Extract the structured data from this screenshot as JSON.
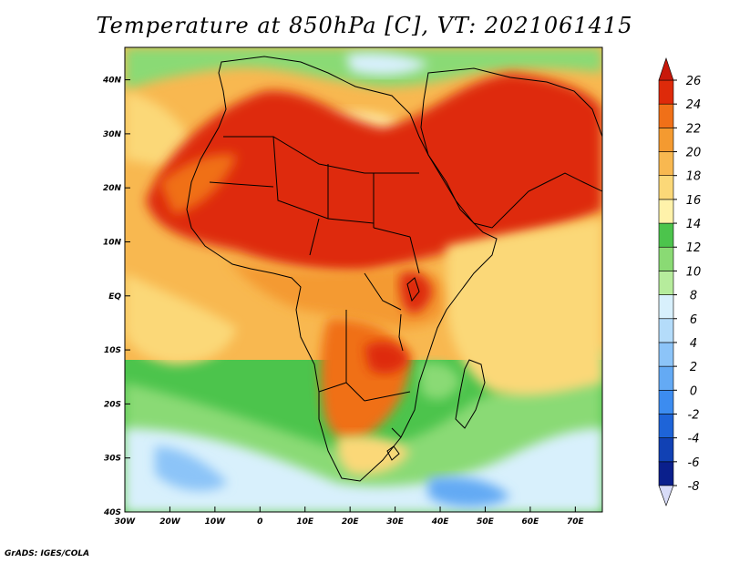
{
  "title": "Temperature at 850hPa [C], VT: 2021061415",
  "credit": "GrADS: IGES/COLA",
  "map": {
    "projection": "lat-lon",
    "lon_range": [
      -30,
      76
    ],
    "lat_range": [
      -40,
      46
    ],
    "lon_ticks": [
      {
        "value": -30,
        "label": "30W"
      },
      {
        "value": -20,
        "label": "20W"
      },
      {
        "value": -10,
        "label": "10W"
      },
      {
        "value": 0,
        "label": "0"
      },
      {
        "value": 10,
        "label": "10E"
      },
      {
        "value": 20,
        "label": "20E"
      },
      {
        "value": 30,
        "label": "30E"
      },
      {
        "value": 40,
        "label": "40E"
      },
      {
        "value": 50,
        "label": "50E"
      },
      {
        "value": 60,
        "label": "60E"
      },
      {
        "value": 70,
        "label": "70E"
      }
    ],
    "lat_ticks": [
      {
        "value": 40,
        "label": "40N"
      },
      {
        "value": 30,
        "label": "30N"
      },
      {
        "value": 20,
        "label": "20N"
      },
      {
        "value": 10,
        "label": "10N"
      },
      {
        "value": 0,
        "label": "EQ"
      },
      {
        "value": -10,
        "label": "10S"
      },
      {
        "value": -20,
        "label": "20S"
      },
      {
        "value": -30,
        "label": "30S"
      },
      {
        "value": -40,
        "label": "40S"
      }
    ]
  },
  "colorbar": {
    "levels": [
      "-8",
      "-6",
      "-4",
      "-2",
      "0",
      "2",
      "4",
      "6",
      "8",
      "10",
      "12",
      "14",
      "16",
      "18",
      "20",
      "22",
      "24",
      "26"
    ],
    "colors": [
      "#0a1f8c",
      "#1141b4",
      "#1e64d8",
      "#3c8cf0",
      "#64aaf4",
      "#8cc4f8",
      "#b4dcfa",
      "#d8f0fc",
      "#b6ec9c",
      "#8ada74",
      "#4cc44c",
      "#fff2aa",
      "#fbd878",
      "#f8b850",
      "#f49a30",
      "#f07018",
      "#de2a0a",
      "#c8180a"
    ],
    "below_color": "#d8dcf8",
    "above_color": "#c8180a"
  }
}
